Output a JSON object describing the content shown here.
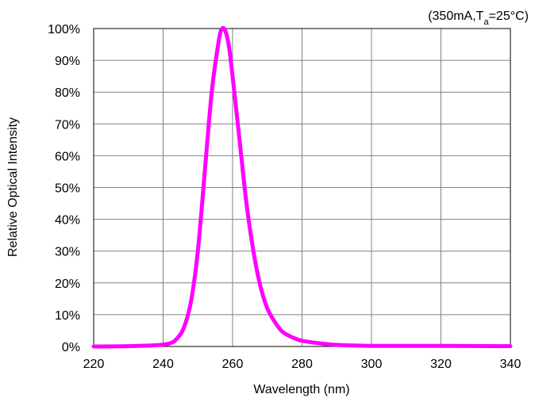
{
  "chart_data": {
    "type": "line",
    "annotation": {
      "prefix": "(350mA,T",
      "subscript": "a",
      "suffix": "=25°C)"
    },
    "xlabel": "Wavelength (nm)",
    "ylabel": "Relative Optical Intensity",
    "xlim": [
      220,
      340
    ],
    "ylim": [
      0,
      100
    ],
    "x_ticks": [
      "220",
      "240",
      "260",
      "280",
      "300",
      "320",
      "340"
    ],
    "y_ticks": [
      "0%",
      "10%",
      "20%",
      "30%",
      "40%",
      "50%",
      "60%",
      "70%",
      "80%",
      "90%",
      "100%"
    ],
    "grid": true,
    "series": [
      {
        "color": "#ff00ff",
        "x": [
          220,
          230,
          238,
          242,
          244,
          246,
          248,
          250,
          252,
          254,
          256,
          257,
          258,
          259,
          260,
          262,
          264,
          266,
          268,
          270,
          272,
          274,
          276,
          278,
          280,
          285,
          290,
          300,
          320,
          340
        ],
        "y": [
          0,
          0.1,
          0.4,
          1,
          2.5,
          6,
          14,
          30,
          55,
          80,
          96,
          100,
          99,
          94,
          85,
          65,
          45,
          30,
          19,
          12,
          8,
          5,
          3.5,
          2.5,
          1.8,
          1,
          0.5,
          0.2,
          0.2,
          0.1
        ]
      }
    ]
  }
}
